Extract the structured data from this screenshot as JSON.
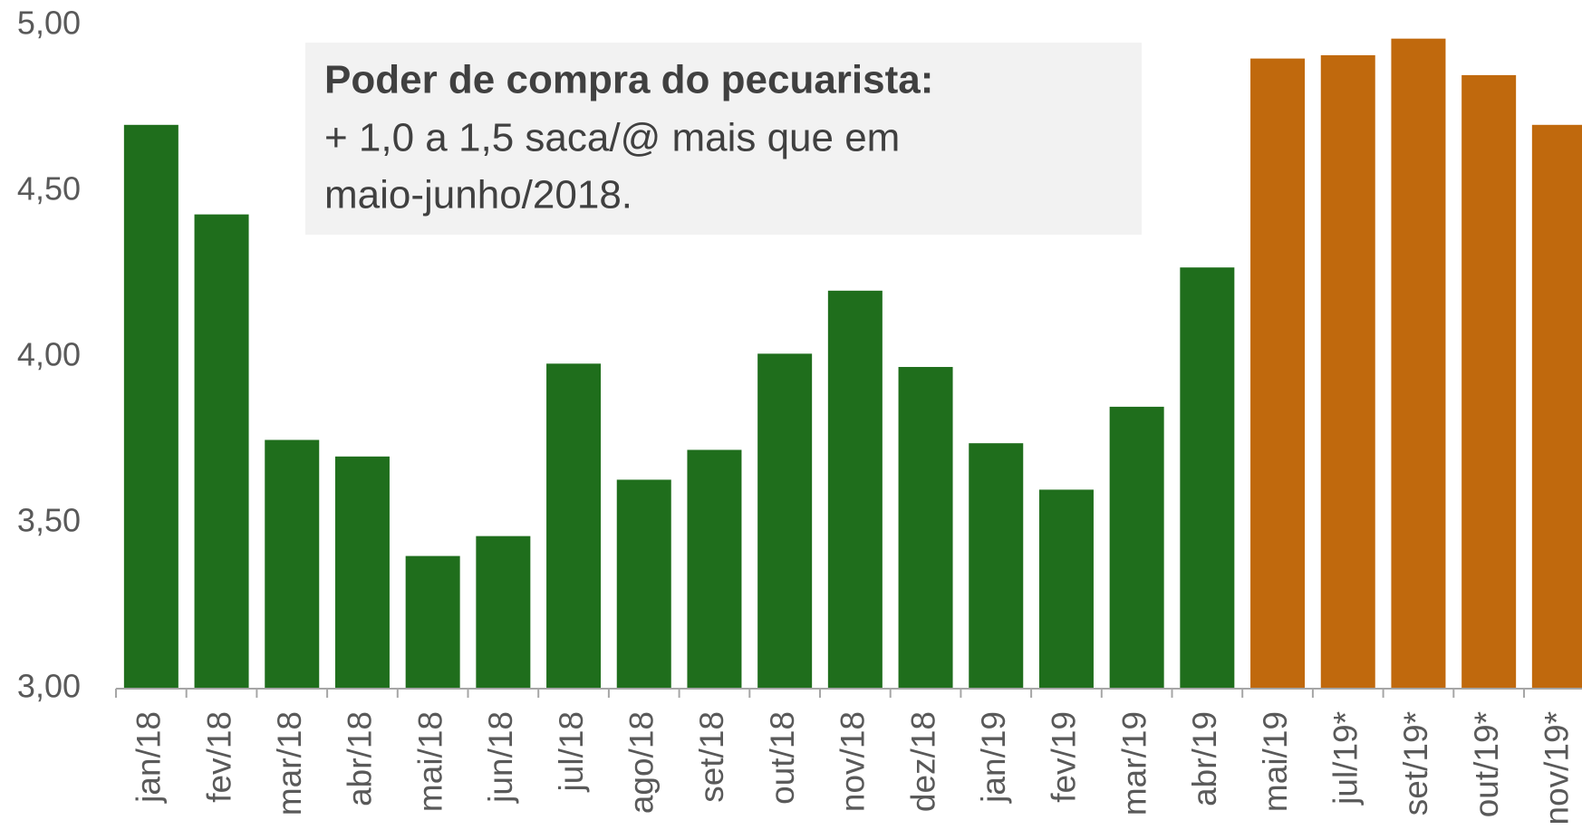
{
  "chart_data": {
    "type": "bar",
    "annotation": {
      "title": "Poder de compra do pecuarista:",
      "lines": [
        "+ 1,0 a 1,5 saca/@ mais que em",
        "maio-junho/2018."
      ]
    },
    "categories": [
      "jan/18",
      "fev/18",
      "mar/18",
      "abr/18",
      "mai/18",
      "jun/18",
      "jul/18",
      "ago/18",
      "set/18",
      "out/18",
      "nov/18",
      "dez/18",
      "jan/19",
      "fev/19",
      "mar/19",
      "abr/19",
      "mai/19",
      "jul/19*",
      "set/19*",
      "out/19*",
      "nov/19*"
    ],
    "values": [
      4.7,
      4.43,
      3.75,
      3.7,
      3.4,
      3.46,
      3.98,
      3.63,
      3.72,
      4.01,
      4.2,
      3.97,
      3.74,
      3.6,
      3.85,
      4.27,
      4.9,
      4.91,
      4.96,
      4.85,
      4.7
    ],
    "colors": [
      "#1f6e1c",
      "#1f6e1c",
      "#1f6e1c",
      "#1f6e1c",
      "#1f6e1c",
      "#1f6e1c",
      "#1f6e1c",
      "#1f6e1c",
      "#1f6e1c",
      "#1f6e1c",
      "#1f6e1c",
      "#1f6e1c",
      "#1f6e1c",
      "#1f6e1c",
      "#1f6e1c",
      "#1f6e1c",
      "#c0690d",
      "#c0690d",
      "#c0690d",
      "#c0690d",
      "#c0690d"
    ],
    "ylim": [
      3.0,
      5.0
    ],
    "yticks": [
      {
        "value": 3.0,
        "label": "3,00"
      },
      {
        "value": 3.5,
        "label": "3,50"
      },
      {
        "value": 4.0,
        "label": "4,00"
      },
      {
        "value": 4.5,
        "label": "4,50"
      },
      {
        "value": 5.0,
        "label": "5,00"
      }
    ],
    "grid": false
  }
}
